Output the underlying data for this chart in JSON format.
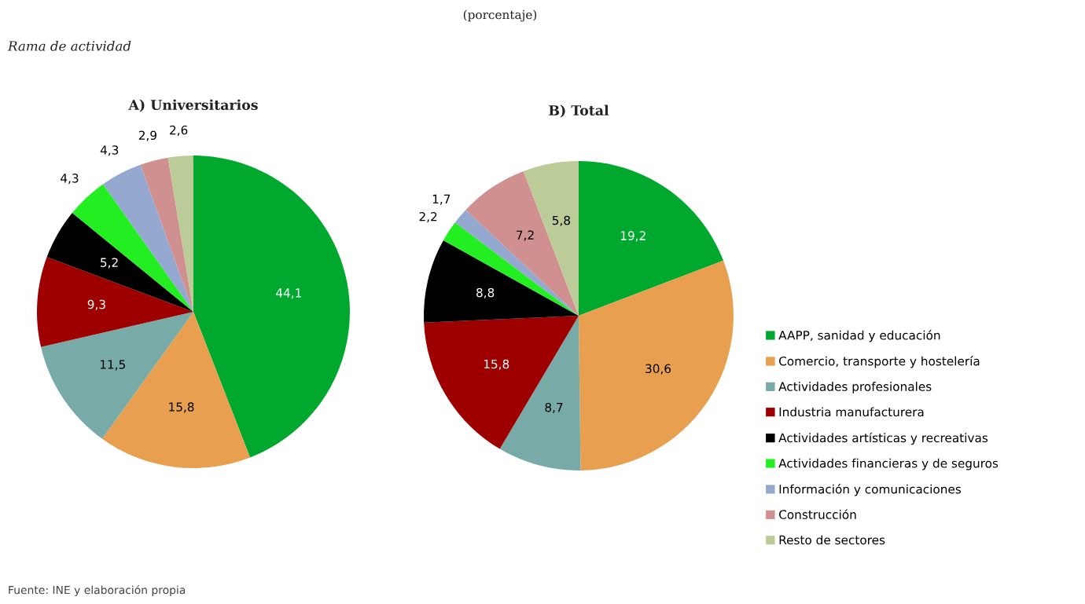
{
  "chart_data": {
    "type": "pie",
    "legend": "right",
    "annotations": [
      "(porcentaje)",
      "Rama de actividad",
      "Fuente: INE y elaboración propia"
    ],
    "categories": [
      "AAPP, sanidad y educación",
      "Comercio, transporte y hostelería",
      "Actividades profesionales",
      "Industria manufacturera",
      "Actividades artísticas y recreativas",
      "Actividades financieras y de seguros",
      "Información y comunicaciones",
      "Construcción",
      "Resto de sectores"
    ],
    "colors": [
      "#00a82d",
      "#e8a050",
      "#78aaa8",
      "#9e0000",
      "#000000",
      "#22ee22",
      "#94a8d0",
      "#d09090",
      "#bccc98"
    ],
    "series": [
      {
        "name": "A) Universitarios",
        "values": [
          44.1,
          15.8,
          11.5,
          9.3,
          5.2,
          4.3,
          4.3,
          2.9,
          2.6
        ],
        "value_labels": [
          "44,1",
          "15,8",
          "11,5",
          "9,3",
          "5,2",
          "4,3",
          "4,3",
          "2,9",
          "2,6"
        ]
      },
      {
        "name": "B) Total",
        "values": [
          19.2,
          30.6,
          8.7,
          15.8,
          8.8,
          2.2,
          1.7,
          7.2,
          5.8
        ],
        "value_labels": [
          "19,2",
          "30,6",
          "8,7",
          "15,8",
          "8,8",
          "2,2",
          "1,7",
          "7,2",
          "5,8"
        ]
      }
    ]
  }
}
